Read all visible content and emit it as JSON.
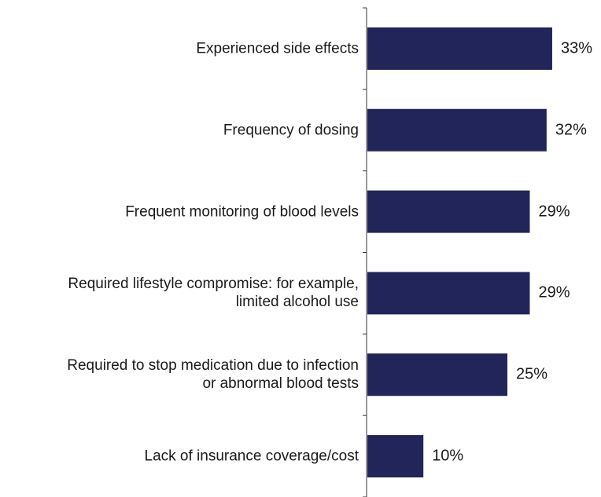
{
  "chart_data": {
    "type": "bar",
    "orientation": "horizontal",
    "categories": [
      "Experienced side effects",
      "Frequency of dosing",
      "Frequent monitoring of blood levels",
      "Required lifestyle compromise: for example,\nlimited alcohol use",
      "Required to stop medication due to infection\nor abnormal blood tests",
      "Lack of insurance coverage/cost"
    ],
    "values": [
      33,
      32,
      29,
      29,
      25,
      10
    ],
    "value_labels": [
      "33%",
      "32%",
      "29%",
      "29%",
      "25%",
      "10%"
    ],
    "color": "#22255a"
  }
}
